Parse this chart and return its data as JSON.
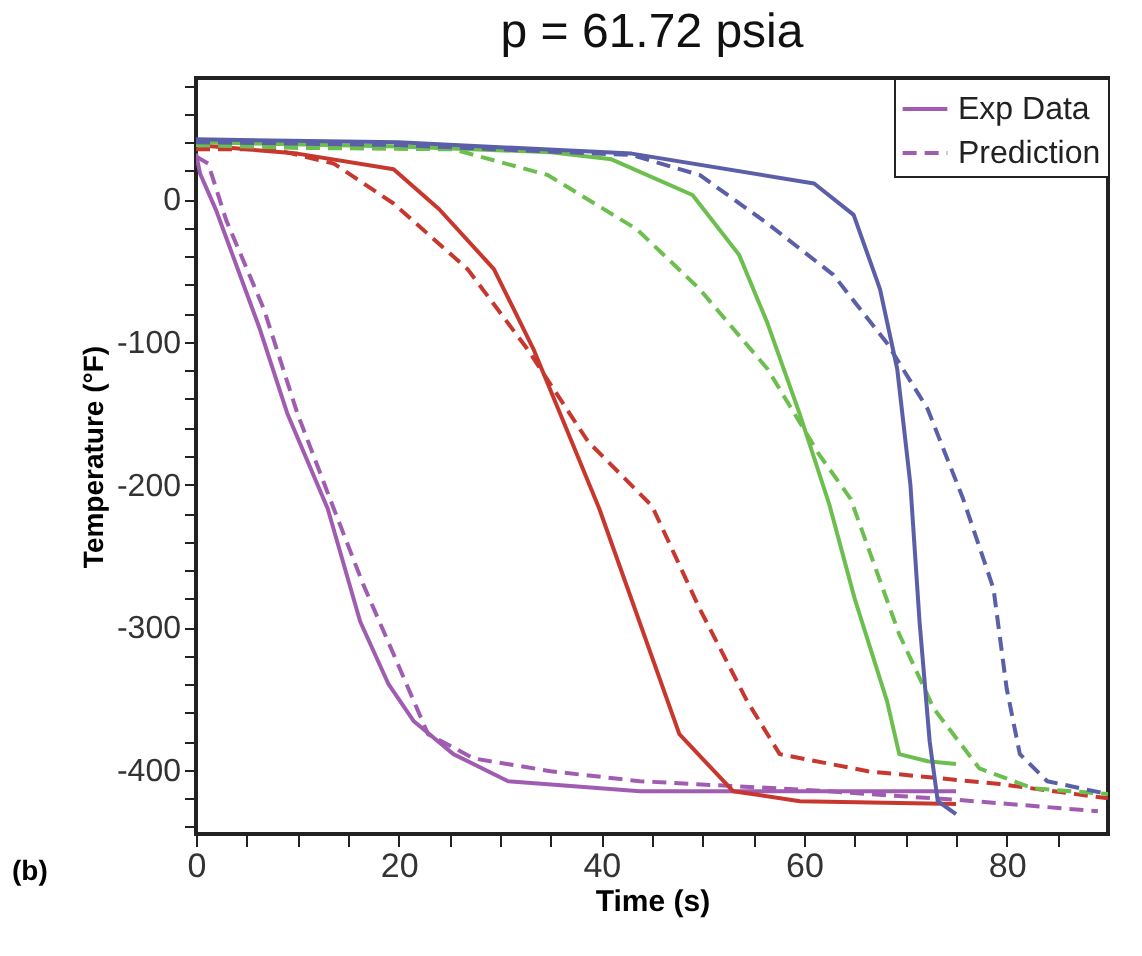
{
  "chart_data": {
    "type": "line",
    "title": "p = 61.72 psia",
    "xlabel": "Time (s)",
    "ylabel": "Temperature (°F)",
    "annotations": [
      "(b)"
    ],
    "xlim": [
      0,
      90
    ],
    "ylim": [
      -445,
      85
    ],
    "xticks": [
      0,
      {
        "value": 5,
        "label": null
      },
      {
        "value": 10,
        "label": null
      },
      {
        "value": 15,
        "label": null
      },
      20,
      {
        "value": 25,
        "label": null
      },
      {
        "value": 30,
        "label": null
      },
      {
        "value": 35,
        "label": null
      },
      40,
      {
        "value": 45,
        "label": null
      },
      {
        "value": 50,
        "label": null
      },
      {
        "value": 55,
        "label": null
      },
      60,
      {
        "value": 65,
        "label": null
      },
      {
        "value": 70,
        "label": null
      },
      {
        "value": 75,
        "label": null
      },
      80,
      {
        "value": 85,
        "label": null
      }
    ],
    "yticks": [
      {
        "value": -440,
        "label": null
      },
      {
        "value": -420,
        "label": null
      },
      -400,
      {
        "value": -380,
        "label": null
      },
      {
        "value": -360,
        "label": null
      },
      {
        "value": -340,
        "label": null
      },
      {
        "value": -320,
        "label": null
      },
      -300,
      {
        "value": -280,
        "label": null
      },
      {
        "value": -260,
        "label": null
      },
      {
        "value": -240,
        "label": null
      },
      {
        "value": -220,
        "label": null
      },
      -200,
      {
        "value": -180,
        "label": null
      },
      {
        "value": -160,
        "label": null
      },
      {
        "value": -140,
        "label": null
      },
      {
        "value": -120,
        "label": null
      },
      -100,
      {
        "value": -80,
        "label": null
      },
      {
        "value": -60,
        "label": null
      },
      {
        "value": -40,
        "label": null
      },
      {
        "value": -20,
        "label": null
      },
      0,
      {
        "value": 20,
        "label": null
      },
      {
        "value": 40,
        "label": null
      },
      {
        "value": 60,
        "label": null
      },
      {
        "value": 80,
        "label": null
      }
    ],
    "grid": false,
    "legend": "top right",
    "marker": "none",
    "series": [
      {
        "name": "Exp Data",
        "color": "#a05cb0",
        "line_style": "solid",
        "x": [
          0,
          0.4,
          2,
          6.3,
          9,
          13,
          16.2,
          19,
          21.5,
          25.4,
          30.8,
          43.8,
          60,
          75
        ],
        "values": [
          32,
          18,
          -8,
          -91,
          -150,
          -217,
          -296,
          -340,
          -366,
          -389,
          -408,
          -415,
          -415,
          -415
        ]
      },
      {
        "name": "Prediction",
        "color": "#a05cb0",
        "line_style": "dashed",
        "x": [
          0,
          1.2,
          3,
          6.7,
          10,
          13.6,
          16.5,
          19.5,
          22.9,
          27.4,
          35,
          43.8,
          60,
          75,
          89
        ],
        "values": [
          30,
          25,
          -15,
          -77,
          -150,
          -217,
          -270,
          -319,
          -375,
          -392,
          -401,
          -408,
          -414,
          -421,
          -429
        ]
      },
      {
        "color": "#c8372d",
        "line_style": "solid",
        "x": [
          0,
          10,
          19.5,
          24,
          29.4,
          33.3,
          36.5,
          39.8,
          43.2,
          47.7,
          53,
          59.6,
          75
        ],
        "values": [
          38,
          32,
          21,
          -7,
          -49,
          -105,
          -160,
          -217,
          -285,
          -375,
          -415,
          -422,
          -424
        ]
      },
      {
        "color": "#c8372d",
        "line_style": "dashed",
        "x": [
          0,
          7.7,
          13.6,
          19.5,
          26.8,
          32.7,
          38.7,
          45,
          49.7,
          54.4,
          57.6,
          66.3,
          79.3,
          90
        ],
        "values": [
          35,
          35,
          25,
          -3,
          -49,
          -105,
          -170,
          -215,
          -287,
          -352,
          -389,
          -401,
          -410,
          -420
        ]
      },
      {
        "color": "#6cbf4f",
        "line_style": "solid",
        "x": [
          0,
          20,
          35,
          41,
          49,
          53.6,
          56.4,
          59.6,
          62.5,
          65,
          68.2,
          69.4,
          72.2,
          75
        ],
        "values": [
          40,
          37,
          33,
          28,
          3,
          -39,
          -87,
          -151,
          -214,
          -280,
          -352,
          -389,
          -394,
          -396
        ]
      },
      {
        "color": "#6cbf4f",
        "line_style": "dashed",
        "x": [
          0,
          10,
          25.4,
          34.7,
          43.5,
          49.7,
          56.4,
          61.5,
          64.6,
          69.4,
          72.8,
          77.3,
          82.6,
          90
        ],
        "values": [
          38,
          36,
          35,
          17,
          -21,
          -63,
          -119,
          -179,
          -210,
          -305,
          -357,
          -399,
          -413,
          -417
        ]
      },
      {
        "color": "#5a5fa8",
        "line_style": "solid",
        "x": [
          0,
          20,
          43,
          61,
          64.9,
          67.5,
          69.2,
          70.5,
          71.4,
          72.4,
          73.2,
          75
        ],
        "values": [
          42,
          40,
          32,
          11,
          -11,
          -63,
          -119,
          -200,
          -296,
          -380,
          -422,
          -431
        ]
      },
      {
        "color": "#5a5fa8",
        "line_style": "dashed",
        "x": [
          0,
          20,
          43,
          49.7,
          56.4,
          62.9,
          68.2,
          72.2,
          75.7,
          78.7,
          80,
          81.3,
          84,
          90
        ],
        "values": [
          40,
          38,
          31,
          17,
          -17,
          -53,
          -101,
          -147,
          -210,
          -273,
          -343,
          -389,
          -408,
          -417
        ]
      }
    ]
  }
}
